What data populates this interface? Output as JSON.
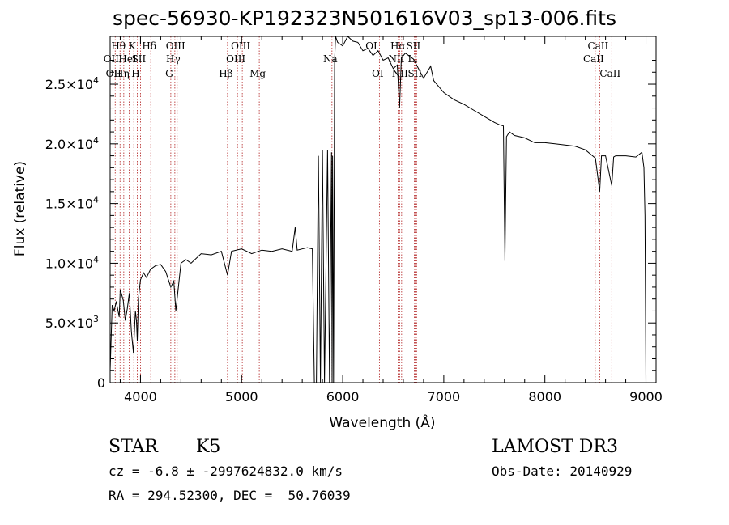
{
  "chart_data": {
    "type": "line",
    "title": "spec-56930-KP192323N501616V03_sp13-006.fits",
    "xlabel": "Wavelength (Å)",
    "ylabel": "Flux (relative)",
    "xlim": [
      3700,
      9100
    ],
    "ylim": [
      0,
      29000
    ],
    "xticks": [
      4000,
      5000,
      6000,
      7000,
      8000,
      9000
    ],
    "yticks": [
      {
        "value": 0,
        "label": "0"
      },
      {
        "value": 5000,
        "label": "5.0×10",
        "exp": "3"
      },
      {
        "value": 10000,
        "label": "1.0×10",
        "exp": "4"
      },
      {
        "value": 15000,
        "label": "1.5×10",
        "exp": "4"
      },
      {
        "value": 20000,
        "label": "2.0×10",
        "exp": "4"
      },
      {
        "value": 25000,
        "label": "2.5×10",
        "exp": "4"
      }
    ],
    "series": [
      {
        "color": "#000000",
        "x": [
          3700,
          3720,
          3740,
          3760,
          3790,
          3800,
          3830,
          3850,
          3870,
          3890,
          3910,
          3930,
          3950,
          3960,
          3968,
          3980,
          4000,
          4030,
          4060,
          4100,
          4150,
          4200,
          4250,
          4300,
          4330,
          4350,
          4400,
          4450,
          4500,
          4600,
          4700,
          4800,
          4861,
          4900,
          5000,
          5100,
          5200,
          5300,
          5400,
          5500,
          5530,
          5550,
          5600,
          5650,
          5700,
          5720,
          5740,
          5760,
          5780,
          5800,
          5820,
          5850,
          5870,
          5890,
          5895,
          5900,
          5910,
          5920,
          5930,
          5950,
          6000,
          6050,
          6100,
          6150,
          6200,
          6250,
          6300,
          6350,
          6400,
          6450,
          6500,
          6540,
          6563,
          6580,
          6620,
          6700,
          6800,
          6870,
          6900,
          7000,
          7100,
          7200,
          7300,
          7400,
          7500,
          7550,
          7590,
          7605,
          7620,
          7650,
          7700,
          7800,
          7900,
          8000,
          8100,
          8200,
          8300,
          8400,
          8500,
          8542,
          8560,
          8600,
          8662,
          8680,
          8700,
          8800,
          8900,
          8960,
          8980,
          8990,
          9000
        ],
        "y": [
          1000,
          6500,
          6000,
          6800,
          5500,
          7800,
          6900,
          5200,
          6200,
          7500,
          4300,
          2500,
          6000,
          5200,
          3500,
          7000,
          8600,
          9200,
          8800,
          9500,
          9800,
          9900,
          9300,
          8000,
          8500,
          6000,
          10000,
          10300,
          10000,
          10800,
          10700,
          11000,
          9000,
          11000,
          11200,
          10800,
          11100,
          11000,
          11200,
          11000,
          13000,
          11100,
          11200,
          11300,
          11200,
          0,
          0,
          19000,
          0,
          19500,
          0,
          19500,
          0,
          19300,
          0,
          19000,
          0,
          27000,
          29000,
          28500,
          28200,
          29000,
          28600,
          28500,
          27800,
          28000,
          27400,
          27800,
          27000,
          27200,
          26300,
          26600,
          23000,
          27200,
          27600,
          27100,
          25500,
          26500,
          25300,
          24300,
          23700,
          23300,
          22800,
          22300,
          21800,
          21600,
          21500,
          10200,
          20600,
          21000,
          20700,
          20500,
          20100,
          20100,
          20000,
          19900,
          19800,
          19500,
          18800,
          16000,
          19000,
          19000,
          16500,
          18900,
          19000,
          19000,
          18900,
          19300,
          18000,
          14000,
          0
        ]
      }
    ],
    "lines": [
      {
        "x": 3727,
        "label": "OII",
        "row": 2
      },
      {
        "x": 3750,
        "label": "OII",
        "row": 3
      },
      {
        "x": 3798,
        "label": "Hθ",
        "row": 1
      },
      {
        "x": 3835,
        "label": "Hη",
        "row": 3
      },
      {
        "x": 3889,
        "label": "HeI",
        "row": 2
      },
      {
        "x": 3934,
        "label": "K",
        "row": 1
      },
      {
        "x": 3968,
        "label": "H",
        "row": 3
      },
      {
        "x": 4000,
        "label": "SII",
        "row": 2
      },
      {
        "x": 4102,
        "label": "Hδ",
        "row": 1
      },
      {
        "x": 4300,
        "label": "G",
        "row": 3
      },
      {
        "x": 4340,
        "label": "Hγ",
        "row": 2
      },
      {
        "x": 4363,
        "label": "OIII",
        "row": 1
      },
      {
        "x": 4861,
        "label": "Hβ",
        "row": 3
      },
      {
        "x": 4959,
        "label": "OIII",
        "row": 2
      },
      {
        "x": 5007,
        "label": "OIII",
        "row": 1
      },
      {
        "x": 5175,
        "label": "Mg",
        "row": 3
      },
      {
        "x": 5894,
        "label": "Na",
        "row": 2
      },
      {
        "x": 6300,
        "label": "OI",
        "row": 1
      },
      {
        "x": 6363,
        "label": "OI",
        "row": 3
      },
      {
        "x": 6548,
        "label": "NII",
        "row": 2
      },
      {
        "x": 6563,
        "label": "Hα",
        "row": 1
      },
      {
        "x": 6583,
        "label": "NII",
        "row": 3
      },
      {
        "x": 6708,
        "label": "Li",
        "row": 2
      },
      {
        "x": 6716,
        "label": "SII",
        "row": 1
      },
      {
        "x": 6731,
        "label": "SII",
        "row": 3
      },
      {
        "x": 8498,
        "label": "CaII",
        "row": 2
      },
      {
        "x": 8542,
        "label": "CaII",
        "row": 1
      },
      {
        "x": 8662,
        "label": "CaII",
        "row": 3
      }
    ]
  },
  "info": {
    "class_label": "STAR",
    "subclass_label": "K5",
    "survey": "LAMOST DR3",
    "cz": "cz = -6.8 ± -2997624832.0 km/s",
    "obs_date": "Obs-Date: 20140929",
    "coords": "RA = 294.52300, DEC =  50.76039"
  },
  "colors": {
    "spectrum": "#000000",
    "line_marker": "#b22222",
    "axes": "#000000"
  }
}
